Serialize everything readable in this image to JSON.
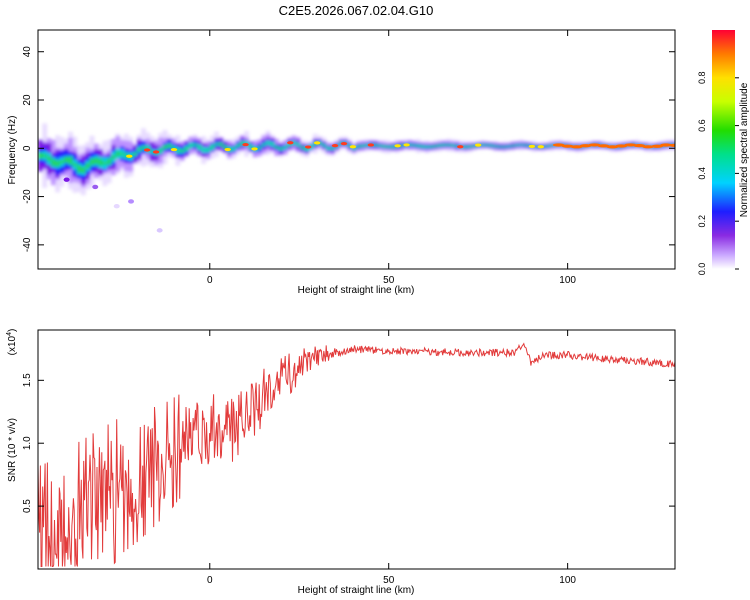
{
  "title": "C2E5.2026.067.02.04.G10",
  "chart_data": [
    {
      "type": "heatmap",
      "xlabel": "Height of straight line (km)",
      "ylabel": "Frequency (Hz)",
      "xlim": [
        -48,
        130
      ],
      "ylim": [
        -50,
        49
      ],
      "xticks": [
        0,
        50,
        100
      ],
      "yticks": [
        40,
        20,
        0,
        -20,
        -40
      ],
      "colorbar": {
        "label": "Normalized spectral amplitude",
        "range": [
          0,
          1
        ],
        "ticks": [
          0.0,
          0.2,
          0.4,
          0.6,
          0.8
        ],
        "tick_labels": [
          "0.0",
          "0.2",
          "0.4",
          "0.6",
          "0.8"
        ]
      },
      "ridge": {
        "x": [
          -48,
          -40,
          -36,
          -30,
          -20,
          -10,
          0,
          10,
          20,
          30,
          40,
          60,
          80,
          100,
          130
        ],
        "center_hz": [
          -4,
          -6,
          -8,
          -5,
          -1,
          0,
          0.5,
          1,
          1,
          1,
          1,
          1,
          1,
          1,
          1
        ],
        "spread_hz": [
          10,
          10,
          9,
          8,
          6,
          5,
          4,
          4,
          3.5,
          3,
          2.5,
          2.5,
          2,
          2,
          2
        ]
      }
    },
    {
      "type": "line",
      "xlabel": "Height of straight line (km)",
      "ylabel": "SNR (10 * v/v)",
      "multiplier": "(x10",
      "multiplier_exp": "4",
      "multiplier_close": ")",
      "xlim": [
        -48,
        130
      ],
      "ylim": [
        0,
        1.9
      ],
      "xticks": [
        0,
        50,
        100
      ],
      "yticks": [
        0.5,
        1.0,
        1.5
      ],
      "ytick_labels": [
        "0.5",
        "1.0",
        "1.5"
      ],
      "series": [
        {
          "color": "#e23b3b",
          "x": [
            -48,
            -44,
            -40,
            -36,
            -32,
            -28,
            -24,
            -20,
            -16,
            -12,
            -8,
            -4,
            0,
            4,
            8,
            12,
            16,
            20,
            24,
            28,
            32,
            36,
            40,
            50,
            60,
            70,
            80,
            85,
            88,
            90,
            92,
            95,
            100,
            110,
            120,
            130
          ],
          "y": [
            0.1,
            0.18,
            0.3,
            0.4,
            0.5,
            0.6,
            0.7,
            0.75,
            0.82,
            0.9,
            1.0,
            1.05,
            1.05,
            1.1,
            1.2,
            1.3,
            1.4,
            1.5,
            1.6,
            1.65,
            1.7,
            1.72,
            1.75,
            1.73,
            1.73,
            1.72,
            1.72,
            1.72,
            1.78,
            1.62,
            1.68,
            1.7,
            1.7,
            1.67,
            1.65,
            1.63
          ]
        }
      ]
    }
  ]
}
